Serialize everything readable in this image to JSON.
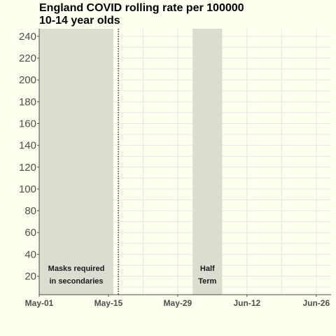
{
  "chart_data": {
    "type": "line",
    "title": "England  COVID rolling rate per 100000",
    "subtitle": "10-14 year olds",
    "xlabel": "",
    "ylabel": "",
    "x_range": [
      "2021-05-01",
      "2021-06-29"
    ],
    "ylim": [
      3,
      247
    ],
    "y_ticks": [
      20,
      40,
      60,
      80,
      100,
      120,
      140,
      160,
      180,
      200,
      220,
      240
    ],
    "x_ticks": [
      {
        "date": "2021-05-01",
        "label": "May-01"
      },
      {
        "date": "2021-05-15",
        "label": "May-15"
      },
      {
        "date": "2021-05-29",
        "label": "May-29"
      },
      {
        "date": "2021-06-12",
        "label": "Jun-12"
      },
      {
        "date": "2021-06-26",
        "label": "Jun-26"
      }
    ],
    "shaded_periods": [
      {
        "start": "2021-05-01",
        "end": "2021-05-16",
        "label_lines": [
          "Masks required",
          "in secondaries"
        ]
      },
      {
        "start": "2021-06-01",
        "end": "2021-06-07",
        "label_lines": [
          "Half",
          "Term"
        ]
      }
    ],
    "vline": {
      "date": "2021-05-17",
      "style": "dotted"
    },
    "grid": true,
    "series": [],
    "colors": {
      "background": "#fffff0",
      "shade": "#dcdcd0",
      "grid": "#e6e6e6",
      "axis": "#4d4d4d"
    }
  }
}
